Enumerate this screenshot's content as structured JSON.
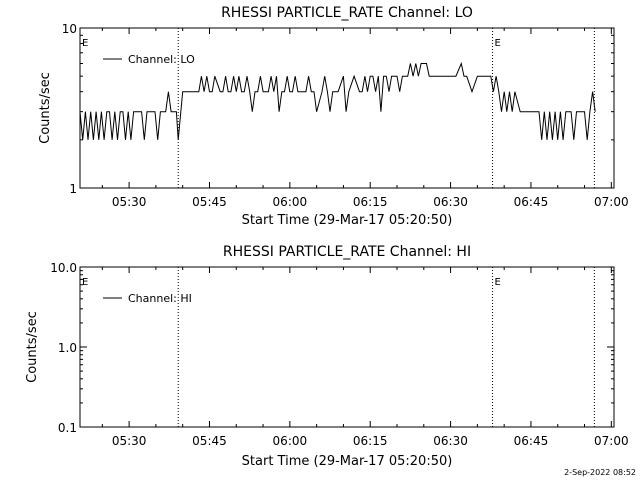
{
  "stamp": "2-Sep-2022 08:52",
  "chart_data": [
    {
      "type": "line",
      "title": "RHESSI PARTICLE_RATE Channel: LO",
      "xlabel": "Start Time (29-Mar-17 05:20:50)",
      "ylabel": "Counts/sec",
      "yscale": "log",
      "ylim": [
        1,
        10
      ],
      "xlim": [
        "05:20:50",
        "07:00:30"
      ],
      "ytick_labels": [
        "1",
        "10"
      ],
      "xticks": [
        "05:30",
        "05:45",
        "06:00",
        "06:15",
        "06:30",
        "06:45",
        "07:00"
      ],
      "grid": false,
      "legend": "top-left",
      "event_markers": [
        "05:20:50",
        "06:37:50"
      ],
      "event_label": "E",
      "vlines": [
        "05:39:10",
        "06:37:50",
        "06:56:50"
      ],
      "series": [
        {
          "name": "Channel: LO",
          "color": "#000000",
          "x": [
            "05:20:50",
            "05:21:20",
            "05:21:50",
            "05:22:20",
            "05:22:50",
            "05:23:20",
            "05:23:50",
            "05:24:20",
            "05:24:50",
            "05:25:20",
            "05:25:50",
            "05:26:20",
            "05:26:50",
            "05:27:20",
            "05:27:50",
            "05:28:20",
            "05:28:50",
            "05:29:20",
            "05:29:50",
            "05:30:20",
            "05:30:50",
            "05:31:20",
            "05:31:50",
            "05:32:20",
            "05:32:50",
            "05:33:20",
            "05:33:50",
            "05:34:20",
            "05:34:50",
            "05:35:20",
            "05:35:50",
            "05:36:20",
            "05:36:50",
            "05:37:20",
            "05:37:50",
            "05:38:20",
            "05:38:50",
            "05:39:10",
            "05:40:00",
            "05:42:00",
            "05:43:00",
            "05:43:30",
            "05:44:00",
            "05:44:30",
            "05:45:00",
            "05:45:30",
            "05:46:00",
            "05:47:00",
            "05:47:30",
            "05:48:00",
            "05:48:30",
            "05:49:00",
            "05:49:30",
            "05:50:00",
            "05:50:30",
            "05:51:00",
            "05:51:30",
            "05:52:00",
            "05:52:30",
            "05:53:00",
            "05:53:30",
            "05:54:00",
            "05:54:30",
            "05:55:00",
            "05:56:00",
            "05:56:30",
            "05:57:00",
            "05:57:30",
            "05:58:00",
            "05:58:30",
            "05:59:00",
            "05:59:30",
            "06:00:00",
            "06:00:30",
            "06:01:00",
            "06:01:30",
            "06:02:00",
            "06:03:00",
            "06:03:30",
            "06:04:00",
            "06:04:30",
            "06:05:00",
            "06:06:00",
            "06:06:30",
            "06:07:00",
            "06:07:30",
            "06:08:00",
            "06:09:00",
            "06:10:00",
            "06:10:30",
            "06:11:00",
            "06:12:00",
            "06:13:00",
            "06:13:30",
            "06:14:00",
            "06:14:30",
            "06:15:00",
            "06:15:30",
            "06:16:00",
            "06:16:30",
            "06:17:00",
            "06:17:30",
            "06:18:00",
            "06:18:30",
            "06:19:00",
            "06:19:30",
            "06:20:00",
            "06:20:30",
            "06:21:00",
            "06:21:30",
            "06:22:00",
            "06:22:30",
            "06:23:00",
            "06:23:30",
            "06:24:00",
            "06:24:30",
            "06:25:00",
            "06:25:30",
            "06:26:00",
            "06:27:00",
            "06:28:00",
            "06:29:00",
            "06:29:30",
            "06:30:00",
            "06:31:00",
            "06:32:00",
            "06:32:30",
            "06:33:00",
            "06:34:00",
            "06:35:00",
            "06:36:00",
            "06:36:30",
            "06:37:00",
            "06:37:30",
            "06:38:00",
            "06:38:30",
            "06:39:00",
            "06:39:30",
            "06:40:00",
            "06:40:30",
            "06:41:00",
            "06:41:30",
            "06:42:00",
            "06:43:00",
            "06:44:00",
            "06:44:30",
            "06:45:00",
            "06:45:30",
            "06:46:00",
            "06:46:30",
            "06:47:00",
            "06:47:30",
            "06:48:00",
            "06:48:30",
            "06:49:00",
            "06:49:30",
            "06:50:00",
            "06:50:30",
            "06:51:00",
            "06:51:30",
            "06:52:00",
            "06:52:30",
            "06:53:00",
            "06:53:30",
            "06:54:00",
            "06:55:00",
            "06:55:30",
            "06:56:00",
            "06:56:30",
            "06:57:00"
          ],
          "y": [
            3,
            2,
            3,
            2,
            3,
            2,
            3,
            2,
            3,
            2,
            3,
            3,
            2,
            3,
            2,
            3,
            3,
            2,
            3,
            2,
            3,
            3,
            3,
            3,
            2,
            3,
            3,
            3,
            3,
            2,
            3,
            3,
            3,
            4,
            3,
            3,
            3,
            2,
            4,
            4,
            4,
            5,
            4,
            5,
            4,
            4,
            5,
            4,
            4,
            5,
            4,
            4,
            5,
            4,
            5,
            4,
            4,
            5,
            4,
            3,
            4,
            4,
            5,
            4,
            4,
            5,
            4,
            5,
            3,
            4,
            4,
            5,
            4,
            4,
            5,
            4,
            4,
            4,
            5,
            4,
            4,
            3,
            4,
            5,
            4,
            3,
            4,
            4,
            5,
            3,
            4,
            5,
            4,
            4,
            5,
            4,
            5,
            5,
            4,
            5,
            3,
            5,
            5,
            4,
            5,
            5,
            5,
            4,
            5,
            5,
            5,
            6,
            5,
            6,
            5,
            6,
            6,
            6,
            5,
            5,
            5,
            5,
            5,
            5,
            5,
            6,
            5,
            5,
            4,
            5,
            5,
            5,
            5,
            5,
            4,
            5,
            4,
            3,
            4,
            3,
            4,
            3,
            4,
            3,
            3,
            3,
            3,
            3,
            3,
            3,
            2,
            3,
            2,
            3,
            2,
            3,
            2,
            3,
            2,
            3,
            3,
            3,
            2,
            3,
            3,
            3,
            2,
            3,
            4,
            3
          ]
        }
      ]
    },
    {
      "type": "line",
      "title": "RHESSI PARTICLE_RATE Channel: HI",
      "xlabel": "Start Time (29-Mar-17 05:20:50)",
      "ylabel": "Counts/sec",
      "yscale": "log",
      "ylim": [
        0.1,
        10
      ],
      "xlim": [
        "05:20:50",
        "07:00:30"
      ],
      "ytick_labels": [
        "0.1",
        "1.0",
        "10.0"
      ],
      "xticks": [
        "05:30",
        "05:45",
        "06:00",
        "06:15",
        "06:30",
        "06:45",
        "07:00"
      ],
      "grid": false,
      "legend": "top-left",
      "event_markers": [
        "05:20:50",
        "06:37:50"
      ],
      "event_label": "E",
      "vlines": [
        "05:39:10",
        "06:37:50",
        "06:56:50"
      ],
      "series": [
        {
          "name": "Channel: HI",
          "color": "#000000",
          "x": [],
          "y": []
        }
      ]
    }
  ]
}
